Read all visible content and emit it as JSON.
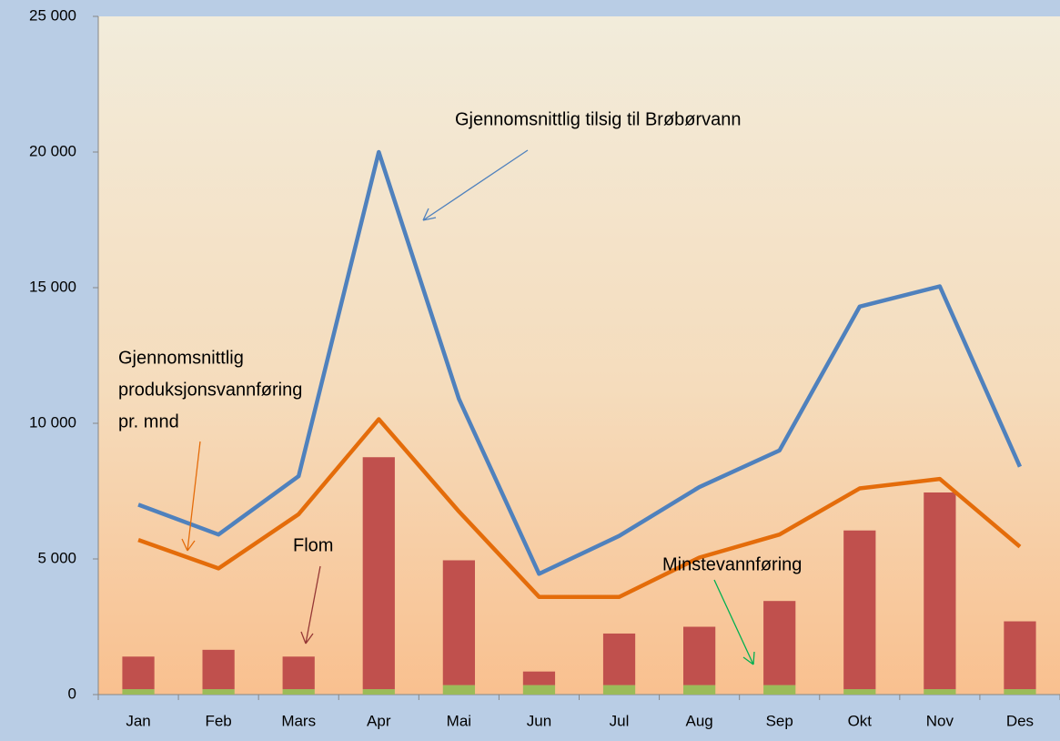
{
  "chart_data": {
    "type": "combo",
    "categories": [
      "Jan",
      "Feb",
      "Mars",
      "Apr",
      "Mai",
      "Jun",
      "Jul",
      "Aug",
      "Sep",
      "Okt",
      "Nov",
      "Des"
    ],
    "series": [
      {
        "name": "Gjennomsnittlig tilsig til Brøbørvann",
        "kind": "line",
        "color": "#4f81bd",
        "values": [
          7000,
          5900,
          8050,
          20000,
          10900,
          4450,
          5850,
          7650,
          9000,
          14300,
          15050,
          8400
        ]
      },
      {
        "name_lines": [
          "Gjennomsnittlig",
          "produksjonsvannføring",
          "pr. mnd"
        ],
        "kind": "line",
        "color": "#e46c0a",
        "values": [
          5700,
          4650,
          6650,
          10150,
          6750,
          3600,
          3600,
          5050,
          5900,
          7600,
          7950,
          5450
        ]
      },
      {
        "name": "Minstevannføring",
        "kind": "bar",
        "color": "#9bbb59",
        "label_color": "#77933c",
        "values": [
          200,
          200,
          200,
          200,
          350,
          350,
          350,
          350,
          350,
          200,
          200,
          200
        ]
      },
      {
        "name": "Flom",
        "kind": "bar",
        "color": "#c0504d",
        "label_color": "#953735",
        "values": [
          1200,
          1450,
          1200,
          8550,
          4600,
          500,
          1900,
          2150,
          3100,
          5850,
          7250,
          2500
        ]
      }
    ],
    "ylim": [
      0,
      25000
    ],
    "yticks": [
      0,
      {
        "value": 5000,
        "label": "5 000"
      },
      {
        "value": 10000,
        "label": "10 000"
      },
      {
        "value": 15000,
        "label": "15 000"
      },
      {
        "value": 20000,
        "label": "20 000"
      },
      {
        "value": 25000,
        "label": "25 000"
      }
    ]
  }
}
